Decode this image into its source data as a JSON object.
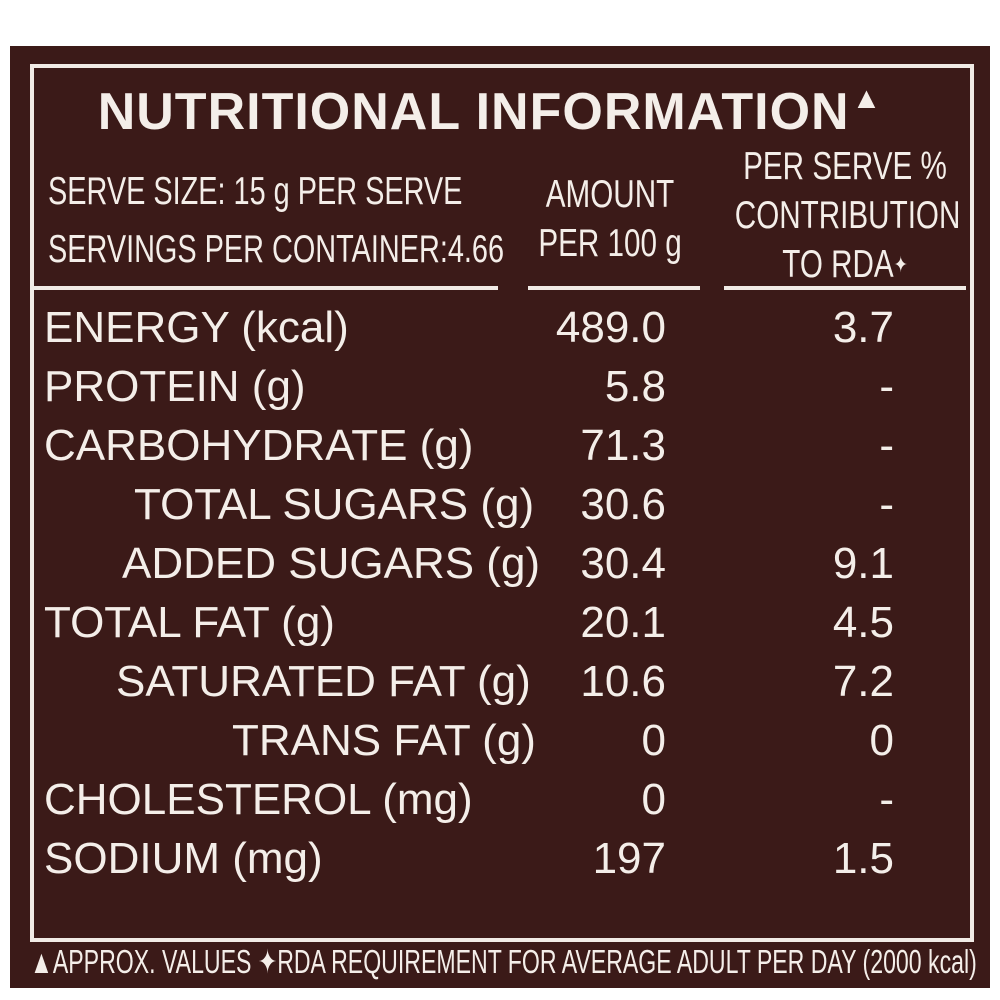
{
  "title": "NUTRITIONAL INFORMATION",
  "title_mark": "▲",
  "serve_size": "SERVE SIZE: 15 g PER SERVE",
  "servings_per_container": "SERVINGS PER CONTAINER:4.66",
  "header_amount": [
    "AMOUNT",
    "PER 100 g"
  ],
  "header_rda": [
    "PER SERVE %",
    "CONTRIBUTION",
    "TO RDA"
  ],
  "header_rda_mark": "✦",
  "rows": [
    {
      "label": "ENERGY (kcal)",
      "amount": "489.0",
      "rda": "3.7"
    },
    {
      "label": "PROTEIN (g)",
      "amount": "5.8",
      "rda": "-"
    },
    {
      "label": "CARBOHYDRATE (g)",
      "amount": "71.3",
      "rda": "-"
    },
    {
      "label": "TOTAL SUGARS (g)",
      "amount": "30.6",
      "rda": "-"
    },
    {
      "label": "ADDED SUGARS (g)",
      "amount": "30.4",
      "rda": "9.1"
    },
    {
      "label": "TOTAL FAT (g)",
      "amount": "20.1",
      "rda": "4.5"
    },
    {
      "label": "SATURATED FAT (g)",
      "amount": "10.6",
      "rda": "7.2"
    },
    {
      "label": "TRANS FAT (g)",
      "amount": "0",
      "rda": "0"
    },
    {
      "label": "CHOLESTEROL (mg)",
      "amount": "0",
      "rda": "-"
    },
    {
      "label": "SODIUM (mg)",
      "amount": "197",
      "rda": "1.5"
    }
  ],
  "footer": "▲APPROX. VALUES ✦RDA REQUIREMENT FOR AVERAGE ADULT PER DAY (2000 kcal)",
  "colors": {
    "background": "#3b1a18",
    "text": "#f4eee9"
  }
}
